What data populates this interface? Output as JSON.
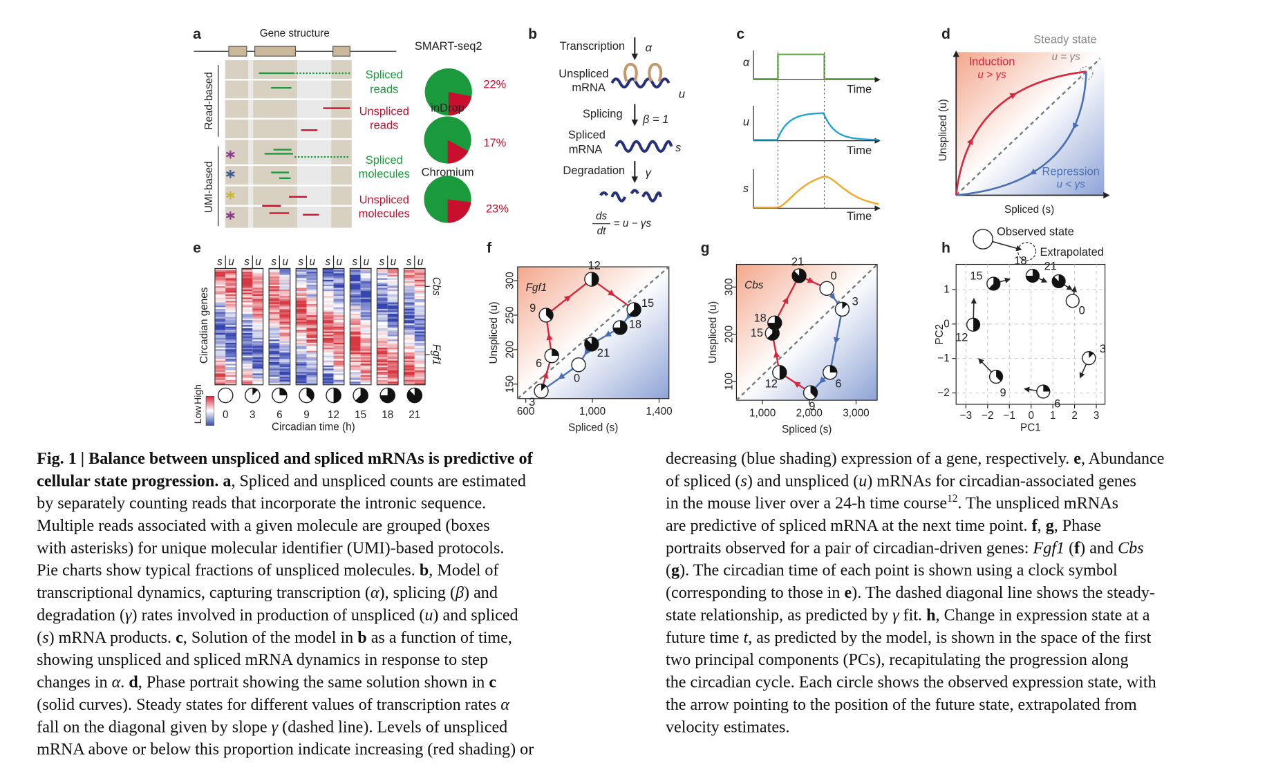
{
  "panels": {
    "a": {
      "label": "a",
      "title": "Gene structure",
      "read_based": "Read-based",
      "umi_based": "UMI-based",
      "row_labels": [
        [
          "Spliced",
          "reads"
        ],
        [
          "Unspliced",
          "reads"
        ],
        [
          "Spliced",
          "molecules"
        ],
        [
          "Unspliced",
          "molecules"
        ]
      ],
      "pies": [
        {
          "name": "SMART-seq2",
          "value": 22,
          "value_label": "22%"
        },
        {
          "name": "inDrop",
          "value": 17,
          "value_label": "17%"
        },
        {
          "name": "Chromium",
          "value": 23,
          "value_label": "23%"
        }
      ],
      "colors": {
        "spliced": "#1a9a3c",
        "unspliced": "#c8102e"
      }
    },
    "b": {
      "label": "b",
      "transcription": "Transcription",
      "alpha": "α",
      "unspliced": [
        "Unspliced",
        "mRNA"
      ],
      "u": "u",
      "splicing": "Splicing",
      "beta": "β = 1",
      "spliced": [
        "Spliced",
        "mRNA"
      ],
      "s": "s",
      "degradation": "Degradation",
      "gamma": "γ",
      "eq_num": "ds",
      "eq_den": "dt",
      "eq_rhs": "= u − γs"
    },
    "c": {
      "label": "c",
      "rows": [
        "α",
        "u",
        "s"
      ],
      "time": "Time",
      "colors": [
        "#6ab04c",
        "#1fa3d1",
        "#f5a623"
      ]
    },
    "d": {
      "label": "d",
      "steady": "Steady state",
      "steady_eq": "u = γs",
      "induction": "Induction",
      "induction_eq": "u > γs",
      "repression": "Repression",
      "repression_eq": "u < γs",
      "xlabel": "Spliced (s)",
      "ylabel": "Unspliced (u)"
    },
    "e": {
      "label": "e",
      "s": "s",
      "u": "u",
      "genes": [
        "Cbs",
        "Fgf1"
      ],
      "ylabel": "Circadian genes",
      "xlabel": "Circadian time (h)",
      "times": [
        0,
        3,
        6,
        9,
        12,
        15,
        18,
        21
      ],
      "colorbar": [
        "Low",
        "High"
      ]
    },
    "f": {
      "label": "f",
      "type": "phase",
      "gene": "Fgf1",
      "xlabel": "Spliced (s)",
      "ylabel": "Unspliced (u)",
      "xlim": [
        551,
        1459
      ],
      "ylim": [
        129,
        320
      ],
      "xticks": [
        600,
        {
          "value": 1000,
          "label": "1,000"
        },
        {
          "value": 1400,
          "label": "1,400"
        }
      ],
      "yticks": [
        150,
        200,
        250,
        300
      ],
      "points": [
        {
          "time": 0,
          "x": 917,
          "y": 178
        },
        {
          "time": 3,
          "x": 693,
          "y": 140
        },
        {
          "time": 6,
          "x": 756,
          "y": 191
        },
        {
          "time": 9,
          "x": 722,
          "y": 250
        },
        {
          "time": 12,
          "x": 995,
          "y": 302
        },
        {
          "time": 15,
          "x": 1249,
          "y": 258
        },
        {
          "time": 18,
          "x": 1166,
          "y": 232
        },
        {
          "time": 21,
          "x": 995,
          "y": 208
        }
      ],
      "segment_colors": [
        "#4a6fb5",
        "#d7263d",
        "#d7263d",
        "#d7263d",
        "#d7263d",
        "#4a6fb5",
        "#4a6fb5",
        "#4a6fb5"
      ]
    },
    "g": {
      "label": "g",
      "type": "phase",
      "gene": "Cbs",
      "xlabel": "Spliced (s)",
      "ylabel": "Unspliced (u)",
      "xlim": [
        443,
        3452
      ],
      "ylim": [
        60,
        348
      ],
      "xticks": [
        {
          "value": 1000,
          "label": "1,000"
        },
        {
          "value": 2000,
          "label": "2,000"
        },
        {
          "value": 3000,
          "label": "3,000"
        }
      ],
      "yticks": [
        100,
        200,
        300
      ],
      "points": [
        {
          "time": 0,
          "x": 2374,
          "y": 297
        },
        {
          "time": 3,
          "x": 2704,
          "y": 253
        },
        {
          "time": 6,
          "x": 2443,
          "y": 119
        },
        {
          "time": 9,
          "x": 2026,
          "y": 76
        },
        {
          "time": 12,
          "x": 1365,
          "y": 119
        },
        {
          "time": 15,
          "x": 1209,
          "y": 202
        },
        {
          "time": 18,
          "x": 1261,
          "y": 224
        },
        {
          "time": 21,
          "x": 1783,
          "y": 324
        }
      ],
      "segment_colors": [
        "#4a6fb5",
        "#4a6fb5",
        "#4a6fb5",
        "#d7263d",
        "#d7263d",
        "#d7263d",
        "#d7263d",
        "#d7263d"
      ]
    },
    "h": {
      "label": "h",
      "observed": "Observed state",
      "extrapolated": "Extrapolated",
      "xlabel": "PC1",
      "ylabel": "PC2",
      "xlim": [
        -3.45,
        3.4
      ],
      "ylim": [
        -2.33,
        1.73
      ],
      "xticks": [
        {
          "value": -3,
          "label": "−3"
        },
        {
          "value": -2,
          "label": "−2"
        },
        {
          "value": -1,
          "label": "−1"
        },
        0,
        1,
        2,
        3
      ],
      "yticks": [
        1,
        0,
        {
          "value": -1,
          "label": "−1"
        },
        {
          "value": -2,
          "label": "−2"
        }
      ],
      "grid": true,
      "points": [
        {
          "time": 0,
          "x": 1.91,
          "y": 0.67,
          "ax": 2.02,
          "ay": 1.1
        },
        {
          "time": 3,
          "x": 2.66,
          "y": -0.99,
          "ax": 2.24,
          "ay": -1.58
        },
        {
          "time": 6,
          "x": 0.56,
          "y": -1.96,
          "ax": -0.34,
          "ay": -1.88
        },
        {
          "time": 9,
          "x": -1.61,
          "y": -1.53,
          "ax": -2.44,
          "ay": -0.99
        },
        {
          "time": 12,
          "x": -2.66,
          "y": -0.02,
          "ax": -2.63,
          "ay": 0.76
        },
        {
          "time": 15,
          "x": -1.73,
          "y": 1.17,
          "ax": -0.94,
          "ay": 1.31
        },
        {
          "time": 18,
          "x": 0.07,
          "y": 1.4,
          "ax": 0.75,
          "ay": 1.21
        },
        {
          "time": 21,
          "x": 1.27,
          "y": 1.24,
          "ax": 1.91,
          "ay": 0.98
        }
      ]
    }
  },
  "caption": {
    "left": [
      [
        {
          "text": "Fig. 1 | Balance between unspliced and spliced mRNAs is predictive of",
          "style": "b"
        }
      ],
      [
        {
          "text": "cellular state progression. ",
          "style": "b"
        },
        {
          "text": "a",
          "style": "b"
        },
        ", Spliced and unspliced counts are estimated"
      ],
      [
        "by separately counting reads that incorporate the intronic sequence."
      ],
      [
        "Multiple reads associated with a given molecule are grouped (boxes"
      ],
      [
        "with asterisks) for unique molecular identifier (UMI)-based protocols."
      ],
      [
        "Pie charts show typical fractions of unspliced molecules. ",
        {
          "text": "b",
          "style": "b"
        },
        ", Model of"
      ],
      [
        "transcriptional dynamics, capturing transcription (",
        {
          "text": "α",
          "style": "i"
        },
        "), splicing (",
        {
          "text": "β",
          "style": "i"
        },
        ") and"
      ],
      [
        "degradation (",
        {
          "text": "γ",
          "style": "i"
        },
        ") rates involved in production of unspliced (",
        {
          "text": "u",
          "style": "i"
        },
        ") and spliced"
      ],
      [
        "(",
        {
          "text": "s",
          "style": "i"
        },
        ") mRNA products. ",
        {
          "text": "c",
          "style": "b"
        },
        ", Solution of the model in ",
        {
          "text": "b",
          "style": "b"
        },
        " as a function of time,"
      ],
      [
        "showing unspliced and spliced mRNA dynamics in response to step"
      ],
      [
        "changes in ",
        {
          "text": "α",
          "style": "i"
        },
        ". ",
        {
          "text": "d",
          "style": "b"
        },
        ", Phase portrait showing the same solution shown in ",
        {
          "text": "c",
          "style": "b"
        }
      ],
      [
        "(solid curves). Steady states for different values of transcription rates ",
        {
          "text": "α",
          "style": "i"
        }
      ],
      [
        "fall on the diagonal given by slope ",
        {
          "text": "γ",
          "style": "i"
        },
        " (dashed line). Levels of unspliced"
      ],
      [
        "mRNA above or below this proportion indicate increasing (red shading) or"
      ]
    ],
    "right": [
      [
        "decreasing (blue shading) expression of a gene, respectively. ",
        {
          "text": "e",
          "style": "b"
        },
        ", Abundance"
      ],
      [
        "of spliced (",
        {
          "text": "s",
          "style": "i"
        },
        ") and unspliced (",
        {
          "text": "u",
          "style": "i"
        },
        ") mRNAs for circadian-associated genes"
      ],
      [
        "in the mouse liver over a 24-h time course",
        {
          "text": "12",
          "style": "sup"
        },
        ". The unspliced mRNAs"
      ],
      [
        "are predictive of spliced mRNA at the next time point. ",
        {
          "text": "f",
          "style": "b"
        },
        ", ",
        {
          "text": "g",
          "style": "b"
        },
        ", Phase"
      ],
      [
        "portraits observed for a pair of circadian-driven genes: ",
        {
          "text": "Fgf1",
          "style": "i"
        },
        " (",
        {
          "text": "f",
          "style": "b"
        },
        ") and ",
        {
          "text": "Cbs",
          "style": "i"
        }
      ],
      [
        "(",
        {
          "text": "g",
          "style": "b"
        },
        "). The circadian time of each point is shown using a clock symbol"
      ],
      [
        "(corresponding to those in ",
        {
          "text": "e",
          "style": "b"
        },
        "). The dashed diagonal line shows the steady-"
      ],
      [
        "state relationship, as predicted by ",
        {
          "text": "γ",
          "style": "i"
        },
        " fit. ",
        {
          "text": "h",
          "style": "b"
        },
        ", Change in expression state at a"
      ],
      [
        "future time ",
        {
          "text": "t",
          "style": "i"
        },
        ", as predicted by the model, is shown in the space of the first"
      ],
      [
        "two principal components (PCs), recapitulating the progression along"
      ],
      [
        "the circadian cycle. Each circle shows the observed expression state, with"
      ],
      [
        "the arrow pointing to the position of the future state, extrapolated from"
      ],
      [
        "velocity estimates."
      ]
    ]
  }
}
